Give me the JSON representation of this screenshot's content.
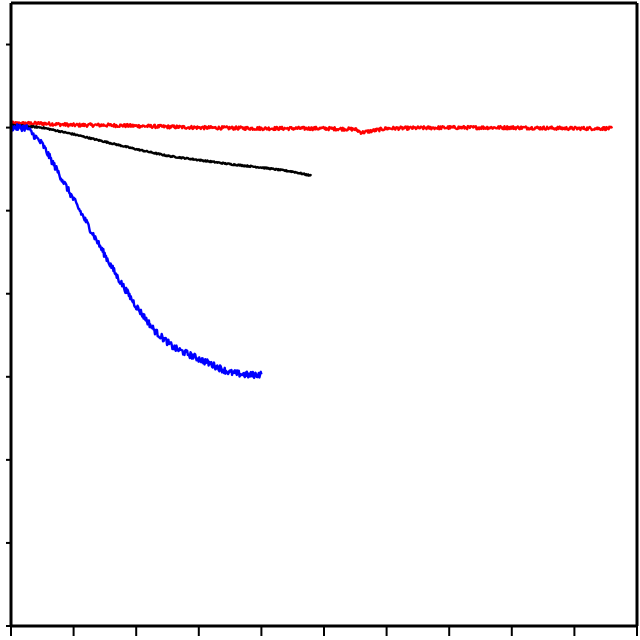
{
  "chart_data": {
    "type": "line",
    "title": "",
    "xlabel": "",
    "ylabel": "",
    "xlim": [
      0,
      10
    ],
    "ylim": [
      -6,
      1.5
    ],
    "x_ticks_major": [
      0,
      1,
      2,
      3,
      4,
      5,
      6,
      7,
      8,
      9,
      10
    ],
    "y_ticks_major": [
      -6,
      -5,
      -4,
      -3,
      -2,
      -1,
      0,
      1
    ],
    "grid": false,
    "legend": "none",
    "series": [
      {
        "color": "#ff0000",
        "noise": 0.02,
        "x": [
          0,
          0.5,
          1,
          1.5,
          2,
          3,
          4,
          5,
          5.5,
          5.6,
          6,
          7,
          8,
          9,
          9.6
        ],
        "y": [
          0.05,
          0.05,
          0.03,
          0.03,
          0.02,
          0.0,
          -0.01,
          -0.01,
          -0.02,
          -0.06,
          -0.01,
          0.0,
          0.0,
          -0.01,
          -0.01
        ]
      },
      {
        "color": "#000000",
        "noise": 0.008,
        "x": [
          0,
          0.2,
          0.5,
          1,
          1.5,
          2,
          2.5,
          3,
          3.5,
          4,
          4.5,
          4.8
        ],
        "y": [
          0.03,
          0.02,
          0.0,
          -0.08,
          -0.17,
          -0.26,
          -0.34,
          -0.39,
          -0.44,
          -0.48,
          -0.53,
          -0.58
        ]
      },
      {
        "color": "#0000ff",
        "noise": 0.04,
        "x": [
          0,
          0.25,
          0.5,
          0.8,
          1.1,
          1.4,
          1.7,
          2.0,
          2.3,
          2.6,
          2.9,
          3.2,
          3.5,
          3.8,
          4.0
        ],
        "y": [
          0.0,
          0.0,
          -0.2,
          -0.6,
          -1.0,
          -1.4,
          -1.8,
          -2.15,
          -2.45,
          -2.65,
          -2.75,
          -2.85,
          -2.95,
          -2.98,
          -2.97
        ]
      }
    ]
  }
}
